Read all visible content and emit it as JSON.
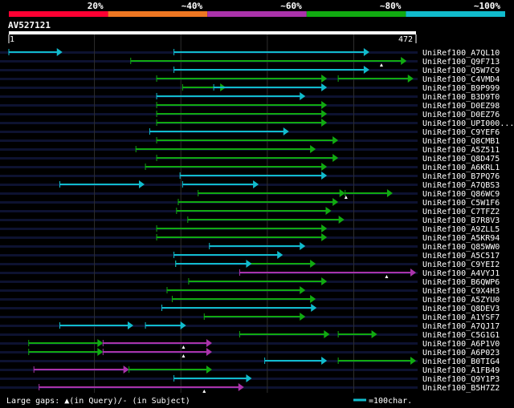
{
  "header": {
    "identity_labels": [
      "20%",
      "~40%",
      "~60%",
      "~80%",
      "~100%"
    ],
    "identity_colors": [
      "#ff0033",
      "#ee7722",
      "#aa33aa",
      "#11aa11",
      "#11bbcc"
    ],
    "query_id": "AV527121",
    "ruler_start": "1",
    "ruler_end": "472",
    "query_length": 472
  },
  "colors": {
    "background": "#000000",
    "row_band": "#0d1230",
    "grid": "#2e2e2e",
    "ruler": "#ffffff"
  },
  "footer": {
    "gaps_legend": "Large gaps: ▲(in Query)/- (in Subject)",
    "scale_legend": "=100char.",
    "scale_color": "#11bbcc"
  },
  "hits": [
    {
      "name": "UniRef100_A7QL10",
      "segments": [
        {
          "start": 1,
          "end": 63,
          "identity": "~100%"
        },
        {
          "start": 192,
          "end": 418,
          "identity": "~100%"
        }
      ]
    },
    {
      "name": "UniRef100_Q9F713",
      "segments": [
        {
          "start": 142,
          "end": 461,
          "identity": "~80%"
        }
      ],
      "query_gaps": [
        432
      ]
    },
    {
      "name": "UniRef100_Q5W7C9",
      "segments": [
        {
          "start": 192,
          "end": 418,
          "identity": "~100%"
        }
      ]
    },
    {
      "name": "UniRef100_C4VMD4",
      "segments": [
        {
          "start": 172,
          "end": 369,
          "identity": "~80%"
        },
        {
          "start": 382,
          "end": 469,
          "identity": "~80%"
        }
      ]
    },
    {
      "name": "UniRef100_B9P999",
      "segments": [
        {
          "start": 202,
          "end": 252,
          "identity": "~80%"
        },
        {
          "start": 238,
          "end": 369,
          "identity": "~100%"
        }
      ]
    },
    {
      "name": "UniRef100_B3D9T0",
      "segments": [
        {
          "start": 172,
          "end": 344,
          "identity": "~100%"
        }
      ]
    },
    {
      "name": "UniRef100_D0EZ98",
      "segments": [
        {
          "start": 172,
          "end": 369,
          "identity": "~80%"
        }
      ]
    },
    {
      "name": "UniRef100_D0EZ76",
      "segments": [
        {
          "start": 172,
          "end": 369,
          "identity": "~80%"
        }
      ]
    },
    {
      "name": "UniRef100_UPI000...",
      "segments": [
        {
          "start": 172,
          "end": 369,
          "identity": "~80%"
        }
      ]
    },
    {
      "name": "UniRef100_C9YEF6",
      "segments": [
        {
          "start": 164,
          "end": 325,
          "identity": "~100%"
        }
      ]
    },
    {
      "name": "UniRef100_Q8CMB1",
      "segments": [
        {
          "start": 172,
          "end": 382,
          "identity": "~80%"
        }
      ]
    },
    {
      "name": "UniRef100_A5Z511",
      "segments": [
        {
          "start": 148,
          "end": 356,
          "identity": "~80%"
        }
      ]
    },
    {
      "name": "UniRef100_Q8D475",
      "segments": [
        {
          "start": 172,
          "end": 382,
          "identity": "~80%"
        }
      ]
    },
    {
      "name": "UniRef100_A6KRL1",
      "segments": [
        {
          "start": 159,
          "end": 369,
          "identity": "~80%"
        }
      ]
    },
    {
      "name": "UniRef100_B7PQ76",
      "segments": [
        {
          "start": 199,
          "end": 369,
          "identity": "~100%"
        }
      ]
    },
    {
      "name": "UniRef100_A7QBS3",
      "segments": [
        {
          "start": 60,
          "end": 158,
          "identity": "~100%"
        },
        {
          "start": 202,
          "end": 290,
          "identity": "~100%"
        }
      ]
    },
    {
      "name": "UniRef100_Q86WC9",
      "segments": [
        {
          "start": 220,
          "end": 390,
          "identity": "~80%"
        },
        {
          "start": 390,
          "end": 445,
          "identity": "~80%"
        }
      ],
      "query_gaps": [
        391
      ]
    },
    {
      "name": "UniRef100_C5W1F6",
      "segments": [
        {
          "start": 197,
          "end": 382,
          "identity": "~80%"
        }
      ]
    },
    {
      "name": "UniRef100_C7TFZ2",
      "segments": [
        {
          "start": 195,
          "end": 374,
          "identity": "~80%"
        }
      ]
    },
    {
      "name": "UniRef100_B7R8V3",
      "segments": [
        {
          "start": 208,
          "end": 389,
          "identity": "~80%"
        }
      ]
    },
    {
      "name": "UniRef100_A9ZLL5",
      "segments": [
        {
          "start": 172,
          "end": 369,
          "identity": "~80%"
        }
      ]
    },
    {
      "name": "UniRef100_A5KR94",
      "segments": [
        {
          "start": 172,
          "end": 369,
          "identity": "~80%"
        }
      ]
    },
    {
      "name": "UniRef100_Q85WW0",
      "segments": [
        {
          "start": 233,
          "end": 344,
          "identity": "~100%"
        }
      ]
    },
    {
      "name": "UniRef100_A5C517",
      "segments": [
        {
          "start": 192,
          "end": 318,
          "identity": "~100%"
        }
      ]
    },
    {
      "name": "UniRef100_C9YEI2",
      "segments": [
        {
          "start": 194,
          "end": 356,
          "identity": "~80%"
        },
        {
          "start": 194,
          "end": 282,
          "identity": "~100%"
        }
      ]
    },
    {
      "name": "UniRef100_A4VYJ1",
      "segments": [
        {
          "start": 268,
          "end": 472,
          "identity": "~60%"
        }
      ],
      "query_gaps": [
        438
      ]
    },
    {
      "name": "UniRef100_B6QWP6",
      "segments": [
        {
          "start": 209,
          "end": 369,
          "identity": "~80%"
        }
      ]
    },
    {
      "name": "UniRef100_C9X4H3",
      "segments": [
        {
          "start": 184,
          "end": 344,
          "identity": "~80%"
        }
      ]
    },
    {
      "name": "UniRef100_A5ZYU0",
      "segments": [
        {
          "start": 190,
          "end": 356,
          "identity": "~80%"
        }
      ]
    },
    {
      "name": "UniRef100_Q8DEV3",
      "segments": [
        {
          "start": 178,
          "end": 357,
          "identity": "~100%"
        }
      ]
    },
    {
      "name": "UniRef100_A1YSF7",
      "segments": [
        {
          "start": 227,
          "end": 344,
          "identity": "~80%"
        }
      ]
    },
    {
      "name": "UniRef100_A7QJ17",
      "segments": [
        {
          "start": 60,
          "end": 145,
          "identity": "~100%"
        },
        {
          "start": 159,
          "end": 206,
          "identity": "~100%"
        }
      ]
    },
    {
      "name": "UniRef100_C5G1G1",
      "segments": [
        {
          "start": 268,
          "end": 372,
          "identity": "~80%"
        },
        {
          "start": 382,
          "end": 427,
          "identity": "~80%"
        }
      ]
    },
    {
      "name": "UniRef100_A6P1V0",
      "segments": [
        {
          "start": 24,
          "end": 110,
          "identity": "~80%"
        },
        {
          "start": 110,
          "end": 236,
          "identity": "~60%"
        }
      ],
      "query_gaps": [
        203
      ]
    },
    {
      "name": "UniRef100_A6P023",
      "segments": [
        {
          "start": 24,
          "end": 110,
          "identity": "~80%"
        },
        {
          "start": 110,
          "end": 236,
          "identity": "~60%"
        }
      ],
      "query_gaps": [
        203
      ]
    },
    {
      "name": "UniRef100_B0TIG4",
      "segments": [
        {
          "start": 297,
          "end": 369,
          "identity": "~100%"
        },
        {
          "start": 382,
          "end": 472,
          "identity": "~80%"
        }
      ]
    },
    {
      "name": "UniRef100_A1FB49",
      "segments": [
        {
          "start": 30,
          "end": 140,
          "identity": "~60%"
        },
        {
          "start": 140,
          "end": 236,
          "identity": "~80%"
        }
      ]
    },
    {
      "name": "UniRef100_Q9Y1P3",
      "segments": [
        {
          "start": 192,
          "end": 282,
          "identity": "~100%"
        }
      ]
    },
    {
      "name": "UniRef100_B5H7Z2",
      "segments": [
        {
          "start": 36,
          "end": 273,
          "identity": "~60%"
        }
      ],
      "query_gaps": [
        227
      ]
    }
  ]
}
